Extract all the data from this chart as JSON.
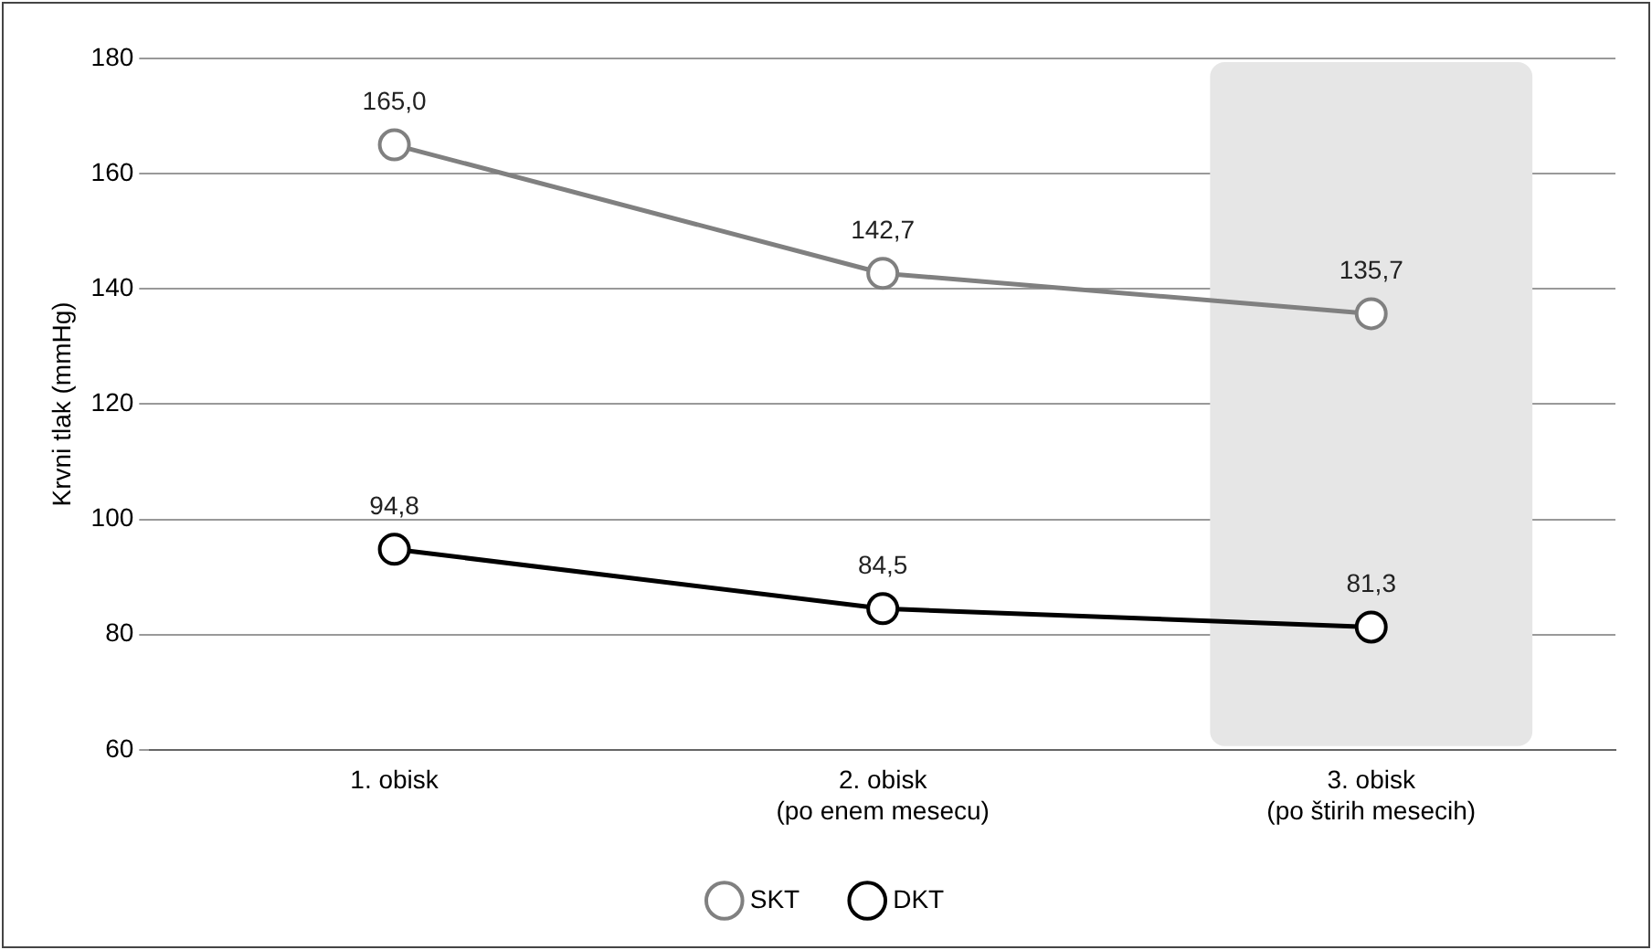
{
  "chart_data": {
    "type": "line",
    "ylabel": "Krvni tlak (mmHg)",
    "categories": [
      "1. obisk",
      "2. obisk\n(po enem mesecu)",
      "3. obisk\n(po štirih mesecih)"
    ],
    "series": [
      {
        "name": "SKT",
        "color": "#808080",
        "values": [
          165.0,
          142.7,
          135.7
        ],
        "value_labels": [
          "165,0",
          "142,7",
          "135,7"
        ]
      },
      {
        "name": "DKT",
        "color": "#000000",
        "values": [
          94.8,
          84.5,
          81.3
        ],
        "value_labels": [
          "94,8",
          "84,5",
          "81,3"
        ]
      }
    ],
    "ylim": [
      60,
      180
    ],
    "yticks": [
      60,
      80,
      100,
      120,
      140,
      160,
      180
    ],
    "grid": "y",
    "legend": "bottom",
    "marker": "circle",
    "line_style": "solid",
    "bands": [
      {
        "axis": "x",
        "from": "3. obisk\n(po štirih mesecih)",
        "to": "3. obisk\n(po štirih mesecih)",
        "color": "#e6e6e6"
      }
    ]
  }
}
